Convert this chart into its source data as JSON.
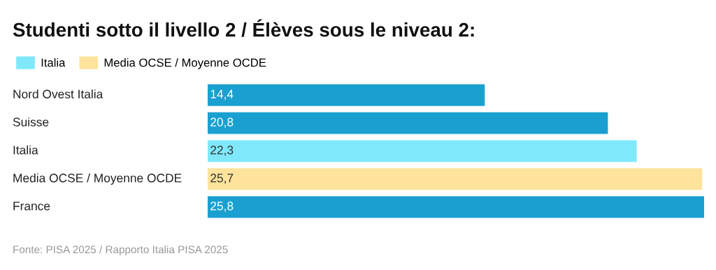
{
  "chart_data": {
    "type": "bar",
    "orientation": "horizontal",
    "title": "Studenti sotto il livello 2 / Élèves sous le niveau 2:",
    "categories": [
      "Nord Ovest Italia",
      "Suisse",
      "Italia",
      "Media OCSE / Moyenne OCDE",
      "France"
    ],
    "series": [
      {
        "color": "#1aa0d0",
        "values": [
          14.4,
          20.8,
          null,
          null,
          25.8
        ],
        "value_labels": [
          "14,4",
          "20,8",
          null,
          null,
          "25,8"
        ]
      },
      {
        "name": "Italia",
        "color": "#7fe9fb",
        "values": [
          null,
          null,
          22.3,
          null,
          null
        ],
        "value_labels": [
          null,
          null,
          "22,3",
          null,
          null
        ]
      },
      {
        "name": "Media OCSE / Moyenne OCDE",
        "color": "#fde39c",
        "values": [
          null,
          null,
          null,
          25.7,
          null
        ],
        "value_labels": [
          null,
          null,
          null,
          "25,7",
          null
        ]
      }
    ],
    "legend": "top left",
    "tick_labels": false,
    "annotations": [
      "Fonte: PISA 2025 / Rapporto Italia PISA 2025"
    ]
  }
}
